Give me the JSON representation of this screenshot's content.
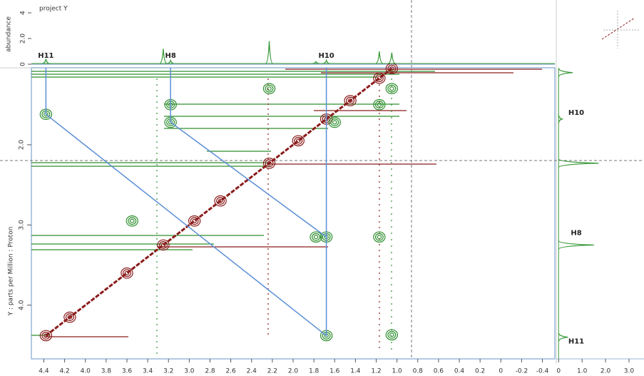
{
  "chart_data": {
    "type": "cosy",
    "ylabel": "Y : parts per Million : Proton",
    "xlim": [
      4.52,
      -0.52
    ],
    "xticks": [
      4.4,
      4.2,
      {
        "value": 4,
        "label": "4.0"
      },
      3.8,
      3.6,
      3.4,
      3.2,
      {
        "value": 3,
        "label": "3.0"
      },
      2.8,
      2.6,
      2.4,
      2.2,
      {
        "value": 2,
        "label": "2.0"
      },
      1.8,
      1.6,
      1.4,
      1.2,
      {
        "value": 1,
        "label": "1.0"
      },
      0.8,
      0.6,
      0.4,
      0.2,
      0,
      -0.2,
      -0.4
    ],
    "ylim": [
      1.04,
      4.67
    ],
    "yticks": [
      {
        "value": 2,
        "label": "2.0"
      },
      {
        "value": 3,
        "label": "3.0"
      },
      {
        "value": 4,
        "label": "4.0"
      }
    ],
    "diagonal_color": "#8b1c1c",
    "cross_color": "#2f8f2f",
    "line_color": "#5b8fd6",
    "diagonal_peaks": {
      "x": [
        4.38,
        4.15,
        3.6,
        3.25,
        2.95,
        2.7,
        2.23,
        1.95,
        1.68,
        1.45,
        1.17,
        1.05
      ],
      "y": [
        4.38,
        4.15,
        3.6,
        3.25,
        2.95,
        2.7,
        2.23,
        1.95,
        1.68,
        1.45,
        1.17,
        1.05
      ]
    },
    "cross_peaks": {
      "x": [
        4.38,
        1.68,
        3.18,
        1.68,
        3.18,
        1.05,
        1.17,
        1.17,
        1.05,
        1.78,
        3.55,
        1.6,
        2.23
      ],
      "y": [
        1.62,
        4.38,
        1.72,
        3.15,
        1.5,
        4.37,
        3.15,
        1.5,
        1.3,
        3.15,
        2.95,
        1.72,
        1.3
      ]
    },
    "assignments": [
      {
        "x": [
          4.38,
          4.38,
          1.68,
          1.68
        ],
        "y": [
          1.04,
          1.62,
          4.38,
          1.04
        ]
      },
      {
        "x": [
          3.18,
          3.18,
          1.68
        ],
        "y": [
          1.04,
          1.72,
          3.15
        ]
      }
    ],
    "top_projection": {
      "title": "project Y",
      "ylabel": "abundance",
      "ylim": [
        0,
        4.5
      ],
      "yticks": [
        0,
        {
          "value": 2,
          "label": "2.0"
        },
        4
      ],
      "color": "#3a9a3a",
      "peaks": {
        "x": [
          4.38,
          3.25,
          3.18,
          2.23,
          1.78,
          1.68,
          1.17,
          1.05
        ],
        "heights": [
          0.4,
          1.2,
          0.3,
          1.8,
          0.2,
          0.3,
          1.0,
          0.9
        ]
      },
      "labels": [
        {
          "text": "H11",
          "x": 4.38
        },
        {
          "text": "H8",
          "x": 3.18
        },
        {
          "text": "H10",
          "x": 1.68
        }
      ]
    },
    "right_projection": {
      "xlim": [
        -0.1,
        3.64
      ],
      "xticks": [
        0,
        {
          "value": 1,
          "label": "1.0"
        },
        {
          "value": 2,
          "label": "2.0"
        },
        {
          "value": 3,
          "label": "3.0"
        }
      ],
      "color": "#3a9a3a",
      "peaks": {
        "y": [
          1.1,
          1.68,
          2.23,
          3.25,
          4.4
        ],
        "heights": [
          0.6,
          0.15,
          1.7,
          1.5,
          0.4
        ]
      },
      "labels": [
        {
          "text": "H10",
          "y": 1.6
        },
        {
          "text": "H8",
          "y": 3.1
        },
        {
          "text": "H11",
          "y": 4.45
        }
      ]
    }
  }
}
